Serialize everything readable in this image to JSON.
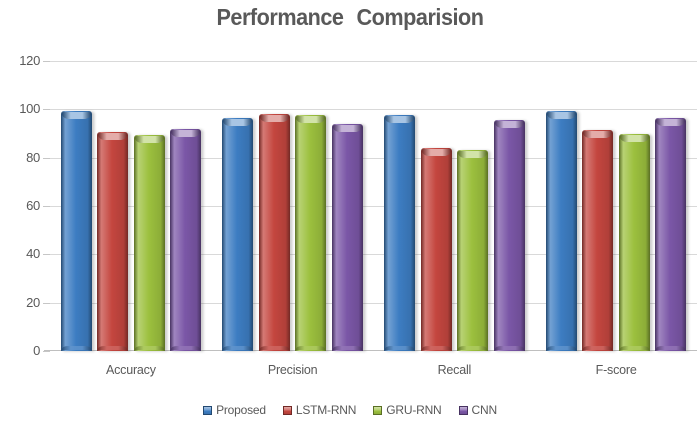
{
  "title": "Performance Comparision",
  "chart_data": {
    "type": "bar",
    "title": "Performance Comparision",
    "categories": [
      "Accuracy",
      "Precision",
      "Recall",
      "F-score"
    ],
    "series": [
      {
        "name": "Proposed",
        "color": "#3D7DC2",
        "values": [
          99.5,
          96.5,
          97.5,
          99.5
        ]
      },
      {
        "name": "LSTM-RNN",
        "color": "#C4463F",
        "values": [
          90.5,
          98,
          84,
          91.5
        ]
      },
      {
        "name": "GRU-RNN",
        "color": "#9CC03E",
        "values": [
          89.5,
          97.5,
          83,
          90
        ]
      },
      {
        "name": "CNN",
        "color": "#7B57A7",
        "values": [
          92,
          94,
          95.5,
          96.5
        ]
      }
    ],
    "xlabel": "",
    "ylabel": "",
    "ylim": [
      0,
      120
    ],
    "yticks": [
      0,
      20,
      40,
      60,
      80,
      100,
      120
    ],
    "grid": true,
    "legend_position": "bottom"
  },
  "colors": {
    "title_text": "#595959",
    "axis_text": "#595959",
    "gridline": "#d9d9d9",
    "baseline": "#bfbfbf",
    "tick": "#c6c6c6",
    "background": "#ffffff"
  }
}
